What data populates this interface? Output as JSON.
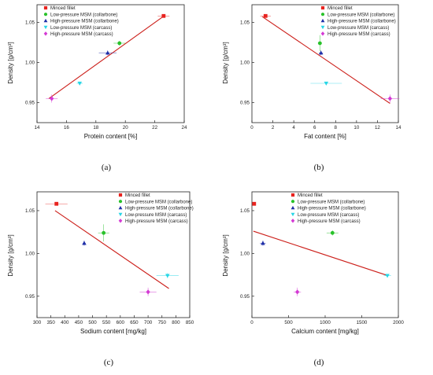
{
  "legend": [
    {
      "label": "Minced fillet",
      "color": "#e8231f",
      "marker": "square"
    },
    {
      "label": "Low-pressure MSM (collarbone)",
      "color": "#28c22a",
      "marker": "circle"
    },
    {
      "label": "High-pressure MSM (collarbone)",
      "color": "#1f2fa8",
      "marker": "triangle"
    },
    {
      "label": "Low-pressure MSM (carcass)",
      "color": "#27d6e6",
      "marker": "triangle-down"
    },
    {
      "label": "High-pressure MSM (carcass)",
      "color": "#d43ad4",
      "marker": "diamond"
    }
  ],
  "fit_line_color": "#cc1f1a",
  "chart_data": [
    {
      "type": "scatter",
      "caption": "(a)",
      "xlabel": "Protein content [%]",
      "ylabel": "Density [g/cm³]",
      "xlim": [
        14,
        24
      ],
      "ylim": [
        0.925,
        1.072
      ],
      "xticks": [
        "14",
        "16",
        "18",
        "20",
        "22",
        "24"
      ],
      "yticks": [
        "0.95",
        "1.00",
        "1.05"
      ],
      "points": [
        {
          "x": 22.6,
          "y": 1.058,
          "xerr": 0.4,
          "yerr": 0.002
        },
        {
          "x": 19.6,
          "y": 1.024,
          "xerr": 0.4,
          "yerr": 0.003
        },
        {
          "x": 18.8,
          "y": 1.012,
          "xerr": 0.6,
          "yerr": 0.003
        },
        {
          "x": 16.9,
          "y": 0.974,
          "xerr": 0.2,
          "yerr": 0.002
        },
        {
          "x": 15.0,
          "y": 0.955,
          "xerr": 0.4,
          "yerr": 0.005
        }
      ],
      "fit": [
        [
          14.8,
          0.955
        ],
        [
          22.7,
          1.059
        ]
      ]
    },
    {
      "type": "scatter",
      "caption": "(b)",
      "xlabel": "Fat content [%]",
      "ylabel": "Density [g/cm³]",
      "xlim": [
        0,
        14
      ],
      "ylim": [
        0.925,
        1.072
      ],
      "xticks": [
        "0",
        "2",
        "4",
        "6",
        "8",
        "10",
        "12",
        "14"
      ],
      "yticks": [
        "0.95",
        "1.00",
        "1.05"
      ],
      "points": [
        {
          "x": 1.3,
          "y": 1.058,
          "xerr": 0.5,
          "yerr": 0.002
        },
        {
          "x": 6.5,
          "y": 1.024,
          "xerr": 0.2,
          "yerr": 0.01
        },
        {
          "x": 6.6,
          "y": 1.012,
          "xerr": 0.2,
          "yerr": 0.003
        },
        {
          "x": 7.1,
          "y": 0.974,
          "xerr": 1.5,
          "yerr": 0.002
        },
        {
          "x": 13.2,
          "y": 0.955,
          "xerr": 0.9,
          "yerr": 0.005
        }
      ],
      "fit": [
        [
          1.0,
          1.057
        ],
        [
          13.2,
          0.949
        ]
      ]
    },
    {
      "type": "scatter",
      "caption": "(c)",
      "xlabel": "Sodium content [mg/kg]",
      "ylabel": "Density [g/cm³]",
      "xlim": [
        300,
        850
      ],
      "ylim": [
        0.925,
        1.072
      ],
      "xticks": [
        "300",
        "350",
        "400",
        "450",
        "500",
        "550",
        "600",
        "650",
        "700",
        "750",
        "800",
        "850"
      ],
      "yticks": [
        "0.95",
        "1.00",
        "1.05"
      ],
      "points": [
        {
          "x": 370,
          "y": 1.058,
          "xerr": 40,
          "yerr": 0.002
        },
        {
          "x": 540,
          "y": 1.024,
          "xerr": 20,
          "yerr": 0.01
        },
        {
          "x": 470,
          "y": 1.012,
          "xerr": 5,
          "yerr": 0.003
        },
        {
          "x": 770,
          "y": 0.974,
          "xerr": 40,
          "yerr": 0.003
        },
        {
          "x": 700,
          "y": 0.955,
          "xerr": 30,
          "yerr": 0.005
        }
      ],
      "fit": [
        [
          365,
          1.05
        ],
        [
          775,
          0.959
        ]
      ]
    },
    {
      "type": "scatter",
      "caption": "(d)",
      "xlabel": "Calcium content [mg/kg]",
      "ylabel": "Density [g/cm³]",
      "xlim": [
        0,
        2000
      ],
      "ylim": [
        0.925,
        1.072
      ],
      "xticks": [
        "0",
        "500",
        "1000",
        "1500",
        "2000"
      ],
      "yticks": [
        "0.95",
        "1.00",
        "1.05"
      ],
      "points": [
        {
          "x": 30,
          "y": 1.058,
          "xerr": 10,
          "yerr": 0.002
        },
        {
          "x": 1100,
          "y": 1.024,
          "xerr": 80,
          "yerr": 0.003
        },
        {
          "x": 150,
          "y": 1.012,
          "xerr": 40,
          "yerr": 0.003
        },
        {
          "x": 1850,
          "y": 0.974,
          "xerr": 50,
          "yerr": 0.002
        },
        {
          "x": 620,
          "y": 0.955,
          "xerr": 50,
          "yerr": 0.005
        }
      ],
      "fit": [
        [
          20,
          1.026
        ],
        [
          1860,
          0.974
        ]
      ]
    }
  ]
}
